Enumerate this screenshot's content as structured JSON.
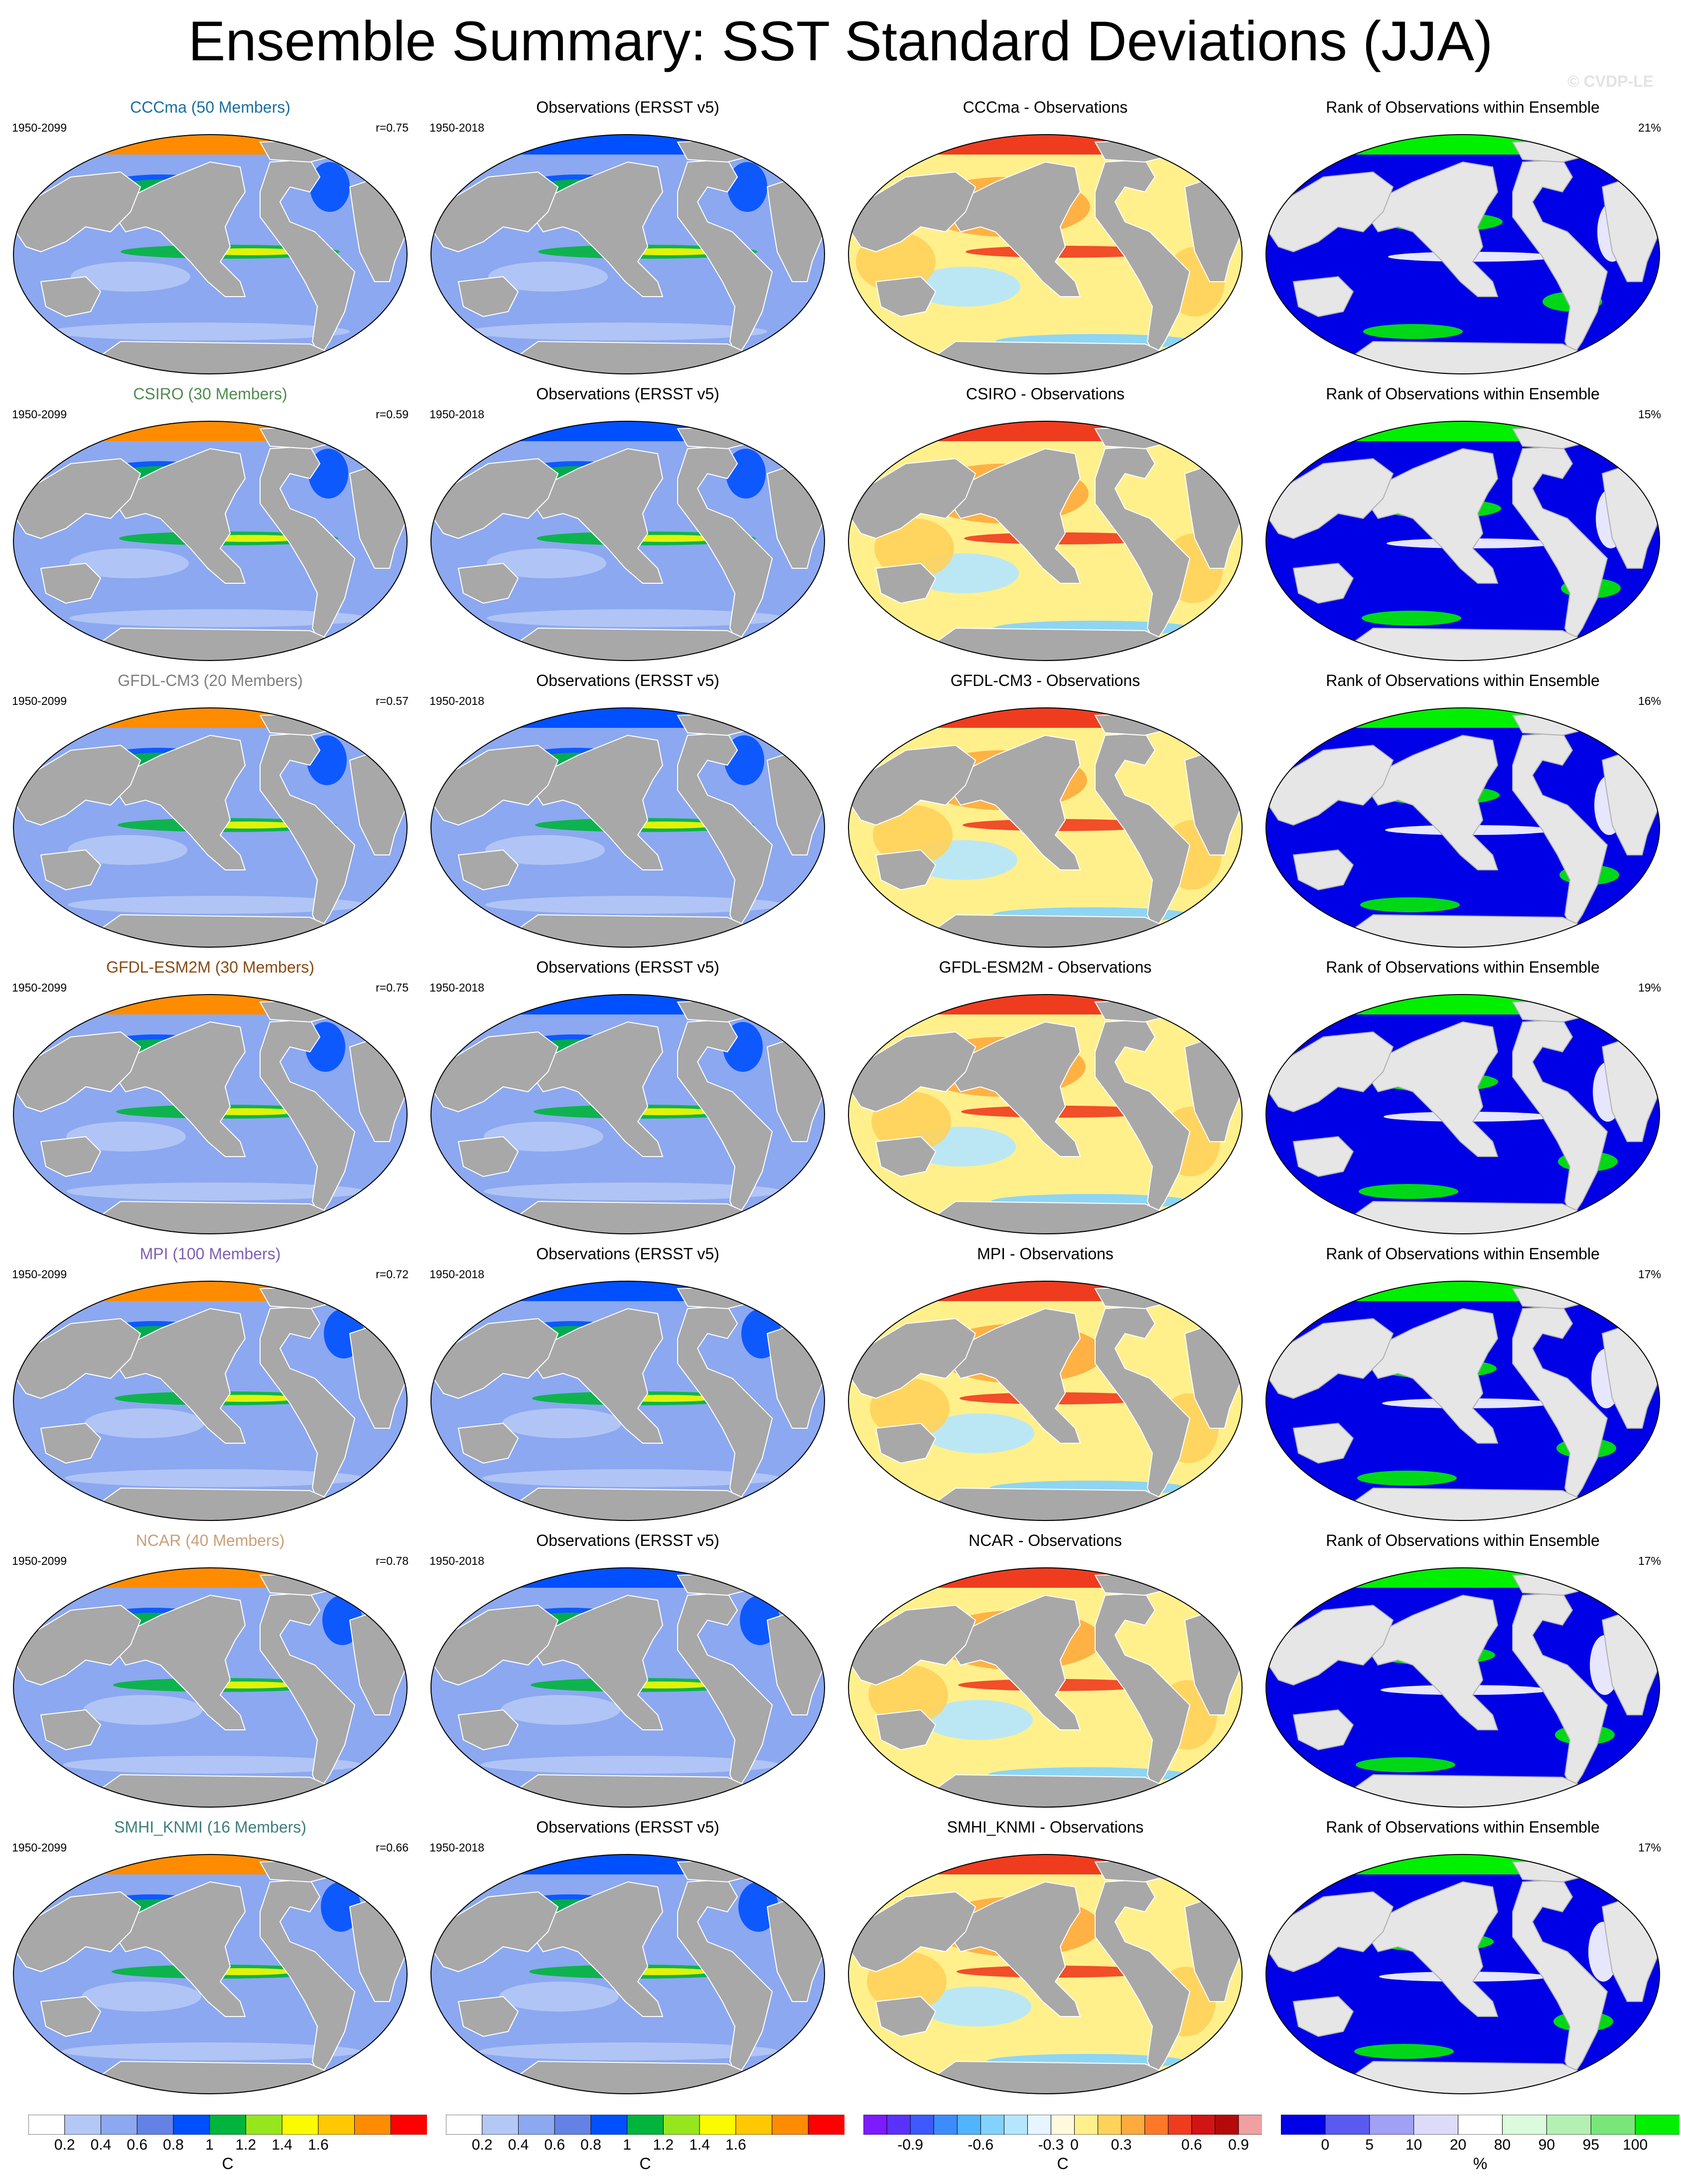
{
  "title": "Ensemble Summary: SST Standard Deviations (JJA)",
  "watermark": "© CVDP-LE",
  "columns": {
    "observations_title": "Observations (ERSST v5)",
    "diff_suffix": " - Observations",
    "rank_title": "Rank of Observations within Ensemble",
    "model_period": "1950-2099",
    "obs_period": "1950-2018"
  },
  "rows": [
    {
      "model": "CCCma",
      "title": "CCCma (50 Members)",
      "color": "#1a6fa0",
      "r": "r=0.75",
      "rank_pct": "21%"
    },
    {
      "model": "CSIRO",
      "title": "CSIRO (30 Members)",
      "color": "#4f8c50",
      "r": "r=0.59",
      "rank_pct": "15%"
    },
    {
      "model": "GFDL-CM3",
      "title": "GFDL-CM3 (20 Members)",
      "color": "#7f7f7f",
      "r": "r=0.57",
      "rank_pct": "16%"
    },
    {
      "model": "GFDL-ESM2M",
      "title": "GFDL-ESM2M (30 Members)",
      "color": "#8a4a14",
      "r": "r=0.75",
      "rank_pct": "19%"
    },
    {
      "model": "MPI",
      "title": "MPI (100 Members)",
      "color": "#8060b0",
      "r": "r=0.72",
      "rank_pct": "17%"
    },
    {
      "model": "NCAR",
      "title": "NCAR (40 Members)",
      "color": "#c8a078",
      "r": "r=0.78",
      "rank_pct": "17%"
    },
    {
      "model": "SMHI_KNMI",
      "title": "SMHI_KNMI (16 Members)",
      "color": "#3d7e7e",
      "r": "r=0.66",
      "rank_pct": "17%"
    }
  ],
  "colorbars": [
    {
      "id": "sd-model",
      "unit": "C",
      "colors": [
        "#ffffff",
        "#b4c8f5",
        "#8ca8f0",
        "#6482e6",
        "#0050ff",
        "#00b43c",
        "#96e61e",
        "#fafa00",
        "#ffc800",
        "#ff8c00",
        "#ff0000"
      ],
      "ticks": [
        "0.2",
        "0.4",
        "0.6",
        "0.8",
        "1",
        "1.2",
        "1.4",
        "1.6"
      ],
      "tick_start": 1
    },
    {
      "id": "sd-obs",
      "unit": "C",
      "colors": [
        "#ffffff",
        "#b4c8f5",
        "#8ca8f0",
        "#6482e6",
        "#0050ff",
        "#00b43c",
        "#96e61e",
        "#fafa00",
        "#ffc800",
        "#ff8c00",
        "#ff0000"
      ],
      "ticks": [
        "0.2",
        "0.4",
        "0.6",
        "0.8",
        "1",
        "1.2",
        "1.4",
        "1.6"
      ],
      "tick_start": 1
    },
    {
      "id": "diff",
      "unit": "C",
      "colors": [
        "#7d1aff",
        "#5a32ff",
        "#3c5aff",
        "#3c8cff",
        "#50b4ff",
        "#82d2ff",
        "#b4e6ff",
        "#e6f5ff",
        "#fffadc",
        "#fff08c",
        "#ffd25a",
        "#ffaa3c",
        "#ff7828",
        "#f03c1e",
        "#d21414",
        "#b40a0a",
        "#f0a0a0"
      ],
      "ticks": [
        "-0.9",
        "-0.6",
        "-0.3",
        "0",
        "0.3",
        "0.6",
        "0.9"
      ],
      "tick_positions": [
        2,
        5,
        8,
        9,
        11,
        14,
        16
      ]
    },
    {
      "id": "rank",
      "unit": "%",
      "colors": [
        "#0000e6",
        "#5a5af0",
        "#a0a0f5",
        "#dcdcfa",
        "#ffffff",
        "#dcfadc",
        "#b4f0b4",
        "#78e678",
        "#00f000"
      ],
      "ticks": [
        "0",
        "5",
        "10",
        "20",
        "80",
        "90",
        "95",
        "100"
      ],
      "tick_positions": [
        1,
        2,
        3,
        4,
        5,
        6,
        7,
        8
      ]
    }
  ]
}
